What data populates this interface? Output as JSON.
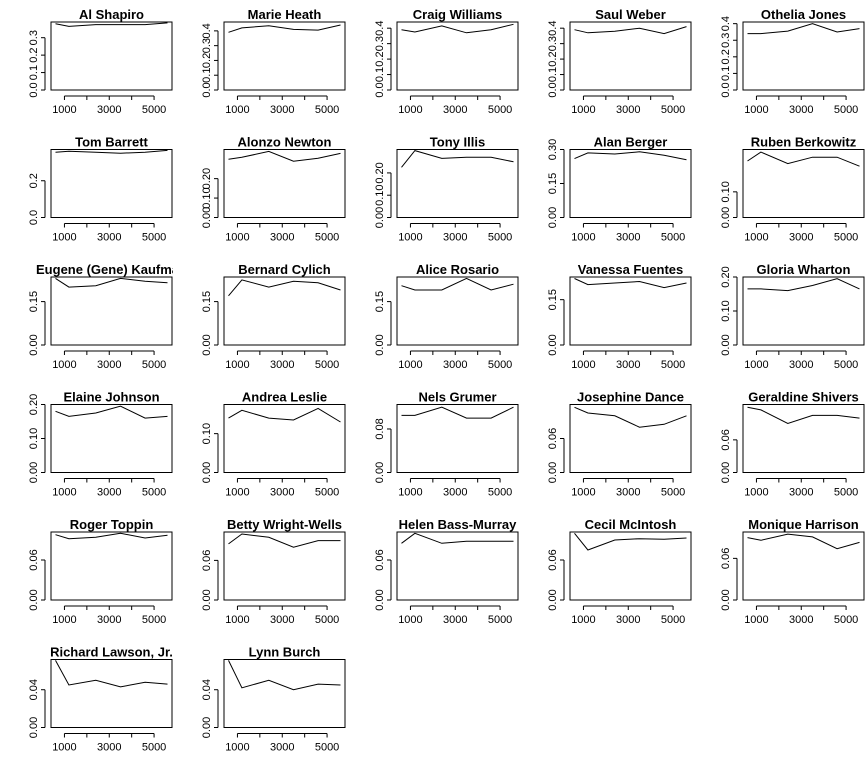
{
  "chart_data": [
    {
      "type": "line",
      "title": "Al Shapiro",
      "x": [
        600,
        1200,
        2400,
        3500,
        4600,
        5600
      ],
      "values": [
        0.38,
        0.365,
        0.375,
        0.375,
        0.375,
        0.385
      ],
      "ylim": [
        0,
        0.39
      ],
      "yticks": [
        "0.0",
        "0.1",
        "0.2",
        "0.3"
      ],
      "yticks_v": [
        0,
        0.1,
        0.2,
        0.3
      ],
      "xticks": [
        "1000",
        "3000",
        "5000"
      ],
      "xticks_v": [
        1000,
        3000,
        5000
      ]
    },
    {
      "type": "line",
      "title": "Marie Heath",
      "x": [
        600,
        1200,
        2400,
        3500,
        4600,
        5600
      ],
      "values": [
        0.39,
        0.42,
        0.435,
        0.41,
        0.405,
        0.44
      ],
      "ylim": [
        0,
        0.46
      ],
      "yticks": [
        "0.0",
        "0.1",
        "0.2",
        "0.3",
        "0.4"
      ],
      "yticks_v": [
        0,
        0.1,
        0.2,
        0.3,
        0.4
      ],
      "xticks": [
        "1000",
        "3000",
        "5000"
      ],
      "xticks_v": [
        1000,
        3000,
        5000
      ]
    },
    {
      "type": "line",
      "title": "Craig Williams",
      "x": [
        600,
        1200,
        2400,
        3500,
        4600,
        5600
      ],
      "values": [
        0.39,
        0.375,
        0.415,
        0.37,
        0.39,
        0.425
      ],
      "ylim": [
        0,
        0.44
      ],
      "yticks": [
        "0.0",
        "0.1",
        "0.2",
        "0.3",
        "0.4"
      ],
      "yticks_v": [
        0,
        0.1,
        0.2,
        0.3,
        0.4
      ],
      "xticks": [
        "1000",
        "3000",
        "5000"
      ],
      "xticks_v": [
        1000,
        3000,
        5000
      ]
    },
    {
      "type": "line",
      "title": "Saul Weber",
      "x": [
        600,
        1200,
        2400,
        3500,
        4600,
        5600
      ],
      "values": [
        0.39,
        0.37,
        0.38,
        0.4,
        0.365,
        0.41
      ],
      "ylim": [
        0,
        0.44
      ],
      "yticks": [
        "0.0",
        "0.1",
        "0.2",
        "0.3",
        "0.4"
      ],
      "yticks_v": [
        0,
        0.1,
        0.2,
        0.3,
        0.4
      ],
      "xticks": [
        "1000",
        "3000",
        "5000"
      ],
      "xticks_v": [
        1000,
        3000,
        5000
      ]
    },
    {
      "type": "line",
      "title": "Othelia Jones",
      "x": [
        600,
        1200,
        2400,
        3500,
        4600,
        5600
      ],
      "values": [
        0.34,
        0.34,
        0.355,
        0.4,
        0.35,
        0.37
      ],
      "ylim": [
        0,
        0.41
      ],
      "yticks": [
        "0.0",
        "0.1",
        "0.2",
        "0.3",
        "0.4"
      ],
      "yticks_v": [
        0,
        0.1,
        0.2,
        0.3,
        0.4
      ],
      "xticks": [
        "1000",
        "3000",
        "5000"
      ],
      "xticks_v": [
        1000,
        3000,
        5000
      ]
    },
    {
      "type": "line",
      "title": "Tom Barrett",
      "x": [
        600,
        1200,
        2400,
        3500,
        4600,
        5600
      ],
      "values": [
        0.355,
        0.36,
        0.355,
        0.35,
        0.355,
        0.365
      ],
      "ylim": [
        0,
        0.37
      ],
      "yticks": [
        "0.0",
        "0.2"
      ],
      "yticks_v": [
        0,
        0.2
      ],
      "xticks": [
        "1000",
        "3000",
        "5000"
      ],
      "xticks_v": [
        1000,
        3000,
        5000
      ]
    },
    {
      "type": "line",
      "title": "Alonzo Newton",
      "x": [
        600,
        1200,
        2400,
        3500,
        4600,
        5600
      ],
      "values": [
        0.3,
        0.31,
        0.34,
        0.29,
        0.305,
        0.33
      ],
      "ylim": [
        0,
        0.35
      ],
      "yticks": [
        "0.00",
        "0.10",
        "0.20"
      ],
      "yticks_v": [
        0,
        0.1,
        0.2
      ],
      "xticks": [
        "1000",
        "3000",
        "5000"
      ],
      "xticks_v": [
        1000,
        3000,
        5000
      ]
    },
    {
      "type": "line",
      "title": "Tony Illis",
      "x": [
        600,
        1200,
        2400,
        3500,
        4600,
        5600
      ],
      "values": [
        0.225,
        0.3,
        0.265,
        0.27,
        0.27,
        0.25
      ],
      "ylim": [
        0,
        0.305
      ],
      "yticks": [
        "0.00",
        "0.10",
        "0.20"
      ],
      "yticks_v": [
        0,
        0.1,
        0.2
      ],
      "xticks": [
        "1000",
        "3000",
        "5000"
      ],
      "xticks_v": [
        1000,
        3000,
        5000
      ]
    },
    {
      "type": "line",
      "title": "Alan Berger",
      "x": [
        600,
        1200,
        2400,
        3500,
        4600,
        5600
      ],
      "values": [
        0.26,
        0.285,
        0.28,
        0.29,
        0.275,
        0.255
      ],
      "ylim": [
        0,
        0.3
      ],
      "yticks": [
        "0.00",
        "0.15",
        "0.30"
      ],
      "yticks_v": [
        0,
        0.15,
        0.3
      ],
      "xticks": [
        "1000",
        "3000",
        "5000"
      ],
      "xticks_v": [
        1000,
        3000,
        5000
      ]
    },
    {
      "type": "line",
      "title": "Ruben Berkowitz",
      "x": [
        600,
        1200,
        2400,
        3500,
        4600,
        5600
      ],
      "values": [
        0.22,
        0.255,
        0.21,
        0.235,
        0.235,
        0.2
      ],
      "ylim": [
        0,
        0.265
      ],
      "yticks": [
        "0.00",
        "0.10"
      ],
      "yticks_v": [
        0,
        0.1
      ],
      "xticks": [
        "1000",
        "3000",
        "5000"
      ],
      "xticks_v": [
        1000,
        3000,
        5000
      ]
    },
    {
      "type": "line",
      "title": "Eugene (Gene) Kaufman",
      "x": [
        600,
        1200,
        2400,
        3500,
        4600,
        5600
      ],
      "values": [
        0.23,
        0.2,
        0.205,
        0.23,
        0.22,
        0.215
      ],
      "ylim": [
        0,
        0.235
      ],
      "yticks": [
        "0.00",
        "0.15"
      ],
      "yticks_v": [
        0,
        0.15
      ],
      "xticks": [
        "1000",
        "3000",
        "5000"
      ],
      "xticks_v": [
        1000,
        3000,
        5000
      ]
    },
    {
      "type": "line",
      "title": "Bernard Cylich",
      "x": [
        600,
        1200,
        2400,
        3500,
        4600,
        5600
      ],
      "values": [
        0.17,
        0.225,
        0.2,
        0.22,
        0.215,
        0.19
      ],
      "ylim": [
        0,
        0.235
      ],
      "yticks": [
        "0.00",
        "0.15"
      ],
      "yticks_v": [
        0,
        0.15
      ],
      "xticks": [
        "1000",
        "3000",
        "5000"
      ],
      "xticks_v": [
        1000,
        3000,
        5000
      ]
    },
    {
      "type": "line",
      "title": "Alice Rosario",
      "x": [
        600,
        1200,
        2400,
        3500,
        4600,
        5600
      ],
      "values": [
        0.205,
        0.19,
        0.19,
        0.23,
        0.19,
        0.21
      ],
      "ylim": [
        0,
        0.235
      ],
      "yticks": [
        "0.00",
        "0.15"
      ],
      "yticks_v": [
        0,
        0.15
      ],
      "xticks": [
        "1000",
        "3000",
        "5000"
      ],
      "xticks_v": [
        1000,
        3000,
        5000
      ]
    },
    {
      "type": "line",
      "title": "Vanessa Fuentes",
      "x": [
        600,
        1200,
        2400,
        3500,
        4600,
        5600
      ],
      "values": [
        0.22,
        0.2,
        0.205,
        0.21,
        0.19,
        0.205
      ],
      "ylim": [
        0,
        0.225
      ],
      "yticks": [
        "0.00",
        "0.15"
      ],
      "yticks_v": [
        0,
        0.15
      ],
      "xticks": [
        "1000",
        "3000",
        "5000"
      ],
      "xticks_v": [
        1000,
        3000,
        5000
      ]
    },
    {
      "type": "line",
      "title": "Gloria Wharton",
      "x": [
        600,
        1200,
        2400,
        3500,
        4600,
        5600
      ],
      "values": [
        0.165,
        0.165,
        0.16,
        0.175,
        0.195,
        0.165
      ],
      "ylim": [
        0,
        0.2
      ],
      "yticks": [
        "0.00",
        "0.10",
        "0.20"
      ],
      "yticks_v": [
        0,
        0.1,
        0.2
      ],
      "xticks": [
        "1000",
        "3000",
        "5000"
      ],
      "xticks_v": [
        1000,
        3000,
        5000
      ]
    },
    {
      "type": "line",
      "title": "Elaine Johnson",
      "x": [
        600,
        1200,
        2400,
        3500,
        4600,
        5600
      ],
      "values": [
        0.18,
        0.165,
        0.175,
        0.195,
        0.16,
        0.165
      ],
      "ylim": [
        0,
        0.2
      ],
      "yticks": [
        "0.00",
        "0.10",
        "0.20"
      ],
      "yticks_v": [
        0,
        0.1,
        0.2
      ],
      "xticks": [
        "1000",
        "3000",
        "5000"
      ],
      "xticks_v": [
        1000,
        3000,
        5000
      ]
    },
    {
      "type": "line",
      "title": "Andrea Leslie",
      "x": [
        600,
        1200,
        2400,
        3500,
        4600,
        5600
      ],
      "values": [
        0.14,
        0.16,
        0.14,
        0.135,
        0.165,
        0.13
      ],
      "ylim": [
        0,
        0.175
      ],
      "yticks": [
        "0.00",
        "0.10"
      ],
      "yticks_v": [
        0,
        0.1
      ],
      "xticks": [
        "1000",
        "3000",
        "5000"
      ],
      "xticks_v": [
        1000,
        3000,
        5000
      ]
    },
    {
      "type": "line",
      "title": "Nels Grumer",
      "x": [
        600,
        1200,
        2400,
        3500,
        4600,
        5600
      ],
      "values": [
        0.105,
        0.105,
        0.12,
        0.1,
        0.1,
        0.12
      ],
      "ylim": [
        0,
        0.125
      ],
      "yticks": [
        "0.00",
        "0.08"
      ],
      "yticks_v": [
        0,
        0.08
      ],
      "xticks": [
        "1000",
        "3000",
        "5000"
      ],
      "xticks_v": [
        1000,
        3000,
        5000
      ]
    },
    {
      "type": "line",
      "title": "Josephine Dance",
      "x": [
        600,
        1200,
        2400,
        3500,
        4600,
        5600
      ],
      "values": [
        0.115,
        0.105,
        0.1,
        0.08,
        0.085,
        0.1
      ],
      "ylim": [
        0,
        0.12
      ],
      "yticks": [
        "0.00",
        "0.06"
      ],
      "yticks_v": [
        0,
        0.06
      ],
      "xticks": [
        "1000",
        "3000",
        "5000"
      ],
      "xticks_v": [
        1000,
        3000,
        5000
      ]
    },
    {
      "type": "line",
      "title": "Geraldine Shivers",
      "x": [
        600,
        1200,
        2400,
        3500,
        4600,
        5600
      ],
      "values": [
        0.12,
        0.115,
        0.09,
        0.105,
        0.105,
        0.1
      ],
      "ylim": [
        0,
        0.125
      ],
      "yticks": [
        "0.00",
        "0.06"
      ],
      "yticks_v": [
        0,
        0.06
      ],
      "xticks": [
        "1000",
        "3000",
        "5000"
      ],
      "xticks_v": [
        1000,
        3000,
        5000
      ]
    },
    {
      "type": "line",
      "title": "Roger Toppin",
      "x": [
        600,
        1200,
        2400,
        3500,
        4600,
        5600
      ],
      "values": [
        0.098,
        0.092,
        0.094,
        0.1,
        0.093,
        0.097
      ],
      "ylim": [
        0,
        0.102
      ],
      "yticks": [
        "0.00",
        "0.06"
      ],
      "yticks_v": [
        0,
        0.06
      ],
      "xticks": [
        "1000",
        "3000",
        "5000"
      ],
      "xticks_v": [
        1000,
        3000,
        5000
      ]
    },
    {
      "type": "line",
      "title": "Betty Wright-Wells",
      "x": [
        600,
        1200,
        2400,
        3500,
        4600,
        5600
      ],
      "values": [
        0.085,
        0.1,
        0.095,
        0.08,
        0.09,
        0.09
      ],
      "ylim": [
        0,
        0.103
      ],
      "yticks": [
        "0.00",
        "0.06"
      ],
      "yticks_v": [
        0,
        0.06
      ],
      "xticks": [
        "1000",
        "3000",
        "5000"
      ],
      "xticks_v": [
        1000,
        3000,
        5000
      ]
    },
    {
      "type": "line",
      "title": "Helen Bass-Murray",
      "x": [
        600,
        1200,
        2400,
        3500,
        4600,
        5600
      ],
      "values": [
        0.085,
        0.1,
        0.085,
        0.088,
        0.088,
        0.088
      ],
      "ylim": [
        0,
        0.102
      ],
      "yticks": [
        "0.00",
        "0.06"
      ],
      "yticks_v": [
        0,
        0.06
      ],
      "xticks": [
        "1000",
        "3000",
        "5000"
      ],
      "xticks_v": [
        1000,
        3000,
        5000
      ]
    },
    {
      "type": "line",
      "title": "Cecil McIntosh",
      "x": [
        600,
        1200,
        2400,
        3500,
        4600,
        5600
      ],
      "values": [
        0.1,
        0.075,
        0.09,
        0.092,
        0.091,
        0.093
      ],
      "ylim": [
        0,
        0.102
      ],
      "yticks": [
        "0.00",
        "0.06"
      ],
      "yticks_v": [
        0,
        0.06
      ],
      "xticks": [
        "1000",
        "3000",
        "5000"
      ],
      "xticks_v": [
        1000,
        3000,
        5000
      ]
    },
    {
      "type": "line",
      "title": "Monique Harrison",
      "x": [
        600,
        1200,
        2400,
        3500,
        4600,
        5600
      ],
      "values": [
        0.09,
        0.086,
        0.095,
        0.091,
        0.074,
        0.083
      ],
      "ylim": [
        0,
        0.098
      ],
      "yticks": [
        "0.00",
        "0.06"
      ],
      "yticks_v": [
        0,
        0.06
      ],
      "xticks": [
        "1000",
        "3000",
        "5000"
      ],
      "xticks_v": [
        1000,
        3000,
        5000
      ]
    },
    {
      "type": "line",
      "title": "Richard Lawson, Jr.",
      "x": [
        600,
        1200,
        2400,
        3500,
        4600,
        5600
      ],
      "values": [
        0.071,
        0.045,
        0.05,
        0.043,
        0.048,
        0.046
      ],
      "ylim": [
        0,
        0.072
      ],
      "yticks": [
        "0.00",
        "0.04"
      ],
      "yticks_v": [
        0,
        0.04
      ],
      "xticks": [
        "1000",
        "3000",
        "5000"
      ],
      "xticks_v": [
        1000,
        3000,
        5000
      ]
    },
    {
      "type": "line",
      "title": "Lynn Burch",
      "x": [
        600,
        1200,
        2400,
        3500,
        4600,
        5600
      ],
      "values": [
        0.071,
        0.042,
        0.05,
        0.04,
        0.046,
        0.045
      ],
      "ylim": [
        0,
        0.072
      ],
      "yticks": [
        "0.00",
        "0.04"
      ],
      "yticks_v": [
        0,
        0.04
      ],
      "xticks": [
        "1000",
        "3000",
        "5000"
      ],
      "xticks_v": [
        1000,
        3000,
        5000
      ]
    }
  ]
}
